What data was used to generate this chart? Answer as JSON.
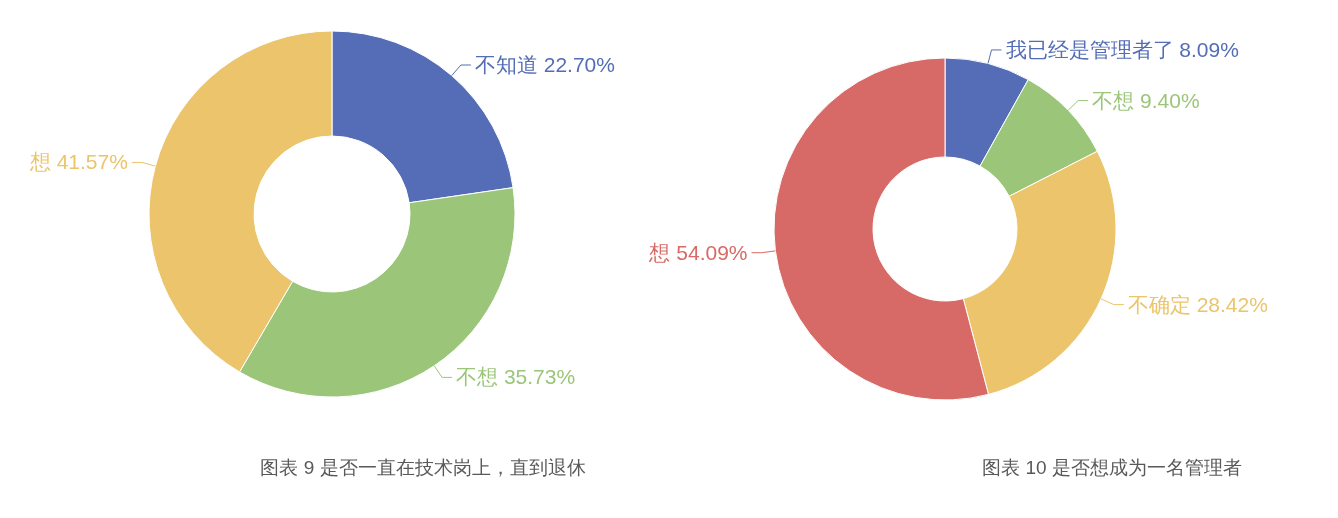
{
  "chart_data": [
    {
      "type": "donut",
      "categories": [
        "不知道",
        "不想",
        "想"
      ],
      "values": [
        22.7,
        35.73,
        41.57
      ],
      "colors": [
        "#546db6",
        "#9bc67a",
        "#ebc46b"
      ],
      "value_labels": [
        "22.70%",
        "35.73%",
        "41.57%"
      ],
      "annotations": [
        "图表 9 是否一直在技术岗上，直到退休"
      ]
    },
    {
      "type": "donut",
      "categories": [
        "我已经是管理者了",
        "不想",
        "不确定",
        "想"
      ],
      "values": [
        8.09,
        9.4,
        28.42,
        54.09
      ],
      "colors": [
        "#546db6",
        "#9bc67a",
        "#ebc46b",
        "#d76a66"
      ],
      "value_labels": [
        "8.09%",
        "9.40%",
        "28.42%",
        "54.09%"
      ],
      "annotations": [
        "图表 10  是否想成为一名管理者"
      ]
    }
  ]
}
